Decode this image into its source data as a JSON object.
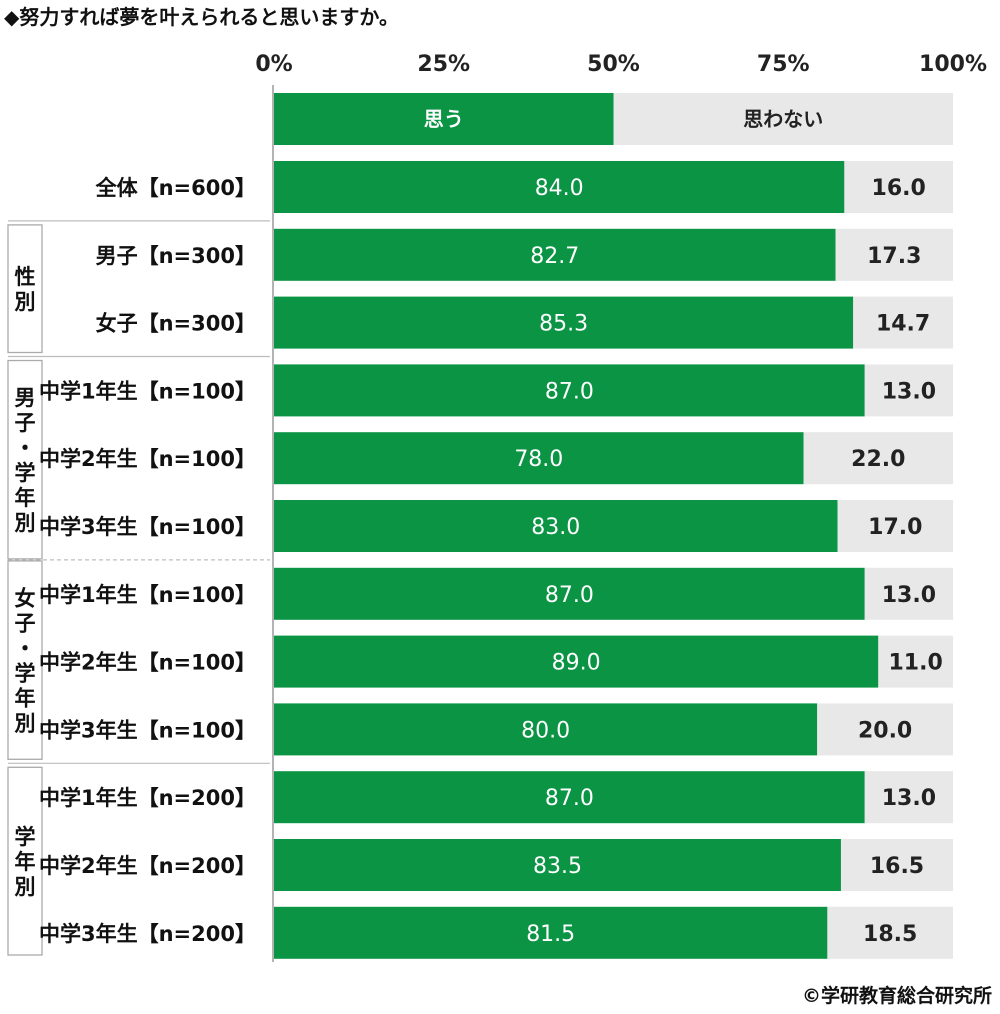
{
  "title": "◆努力すれば夢を叶えられると思いますか。",
  "credit": "©学研教育総合研究所",
  "colors": {
    "yes": "#0a9444",
    "no": "#e8e8e8",
    "frame": "#aaaaaa"
  },
  "chart_data": {
    "type": "bar",
    "orientation": "horizontal",
    "stacked": true,
    "percent": true,
    "xlim": [
      0,
      100
    ],
    "x_ticks": [
      "0%",
      "25%",
      "50%",
      "75%",
      "100%"
    ],
    "legend": {
      "labels": [
        "思う",
        "思わない"
      ],
      "placement": "top"
    },
    "categories": [
      "全体【n=600】",
      "男子【n=300】",
      "女子【n=300】",
      "中学1年生【n=100】",
      "中学2年生【n=100】",
      "中学3年生【n=100】",
      "中学1年生【n=100】",
      "中学2年生【n=100】",
      "中学3年生【n=100】",
      "中学1年生【n=200】",
      "中学2年生【n=200】",
      "中学3年生【n=200】"
    ],
    "series": [
      {
        "name": "思う",
        "values": [
          84.0,
          82.7,
          85.3,
          87.0,
          78.0,
          83.0,
          87.0,
          89.0,
          80.0,
          87.0,
          83.5,
          81.5
        ]
      },
      {
        "name": "思わない",
        "values": [
          16.0,
          17.3,
          14.7,
          13.0,
          22.0,
          17.0,
          13.0,
          11.0,
          20.0,
          13.0,
          16.5,
          18.5
        ]
      }
    ],
    "groups": [
      {
        "label": "性別",
        "rows": [
          1,
          2
        ]
      },
      {
        "label": "男子・学年別",
        "rows": [
          3,
          4,
          5
        ]
      },
      {
        "label": "女子・学年別",
        "rows": [
          6,
          7,
          8
        ]
      },
      {
        "label": "学年別",
        "rows": [
          9,
          10,
          11
        ]
      }
    ]
  }
}
